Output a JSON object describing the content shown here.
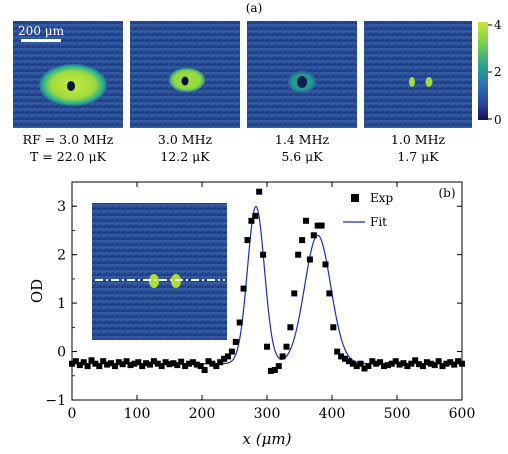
{
  "panel_a": {
    "label": "(a)",
    "scale_bar": "200 μm",
    "captions": [
      {
        "rf": "RF = 3.0 MHz",
        "temp": "T = 22.0 μK"
      },
      {
        "rf": "3.0 MHz",
        "temp": "12.2 μK"
      },
      {
        "rf": "1.4 MHz",
        "temp": "5.6 μK"
      },
      {
        "rf": "1.0 MHz",
        "temp": "1.7 μK"
      }
    ],
    "colorbar_ticks": [
      "4",
      "2",
      "0"
    ],
    "colors": {
      "background": "#2a4c9a",
      "mid": "#27a38a",
      "high": "#b9e43b",
      "hole": "#08133a"
    }
  },
  "panel_b": {
    "label": "(b)",
    "legend": {
      "exp": "Exp",
      "fit": "Fit"
    },
    "colors": {
      "fit": "#1a2fb8",
      "data": "#000000"
    }
  },
  "chart_data": {
    "type": "scatter",
    "title": "",
    "xlabel": "x (μm)",
    "ylabel": "OD",
    "xlim": [
      0,
      600
    ],
    "ylim": [
      -1,
      3.5
    ],
    "xticks": [
      "0",
      "100",
      "200",
      "300",
      "400",
      "500",
      "600"
    ],
    "yticks": [
      "−1",
      "0",
      "1",
      "2",
      "3"
    ],
    "legend_position": "top-right",
    "series": [
      {
        "name": "Exp",
        "type": "scatter",
        "x": [
          0,
          6,
          12,
          18,
          24,
          30,
          36,
          42,
          48,
          54,
          60,
          66,
          72,
          78,
          84,
          90,
          96,
          102,
          108,
          114,
          120,
          126,
          132,
          138,
          144,
          150,
          156,
          162,
          168,
          174,
          180,
          186,
          192,
          198,
          204,
          210,
          216,
          222,
          228,
          234,
          240,
          246,
          252,
          258,
          264,
          270,
          276,
          282,
          288,
          294,
          300,
          306,
          312,
          318,
          324,
          330,
          336,
          342,
          348,
          354,
          360,
          366,
          372,
          378,
          384,
          390,
          396,
          402,
          408,
          414,
          420,
          426,
          432,
          438,
          444,
          450,
          456,
          462,
          468,
          474,
          480,
          486,
          492,
          498,
          504,
          510,
          516,
          522,
          528,
          534,
          540,
          546,
          552,
          558,
          564,
          570,
          576,
          582,
          588,
          594,
          600
        ],
        "y": [
          -0.25,
          -0.2,
          -0.28,
          -0.22,
          -0.3,
          -0.18,
          -0.25,
          -0.3,
          -0.2,
          -0.27,
          -0.24,
          -0.3,
          -0.22,
          -0.26,
          -0.2,
          -0.28,
          -0.25,
          -0.22,
          -0.3,
          -0.24,
          -0.27,
          -0.2,
          -0.25,
          -0.3,
          -0.22,
          -0.26,
          -0.24,
          -0.28,
          -0.21,
          -0.3,
          -0.25,
          -0.22,
          -0.27,
          -0.3,
          -0.38,
          -0.2,
          -0.25,
          -0.3,
          -0.22,
          -0.15,
          -0.1,
          0.0,
          0.2,
          0.6,
          1.3,
          2.3,
          2.7,
          2.8,
          3.3,
          2.0,
          0.1,
          -0.4,
          -0.38,
          -0.3,
          -0.1,
          0.1,
          0.5,
          1.2,
          2.0,
          2.3,
          2.7,
          1.9,
          2.4,
          2.6,
          2.6,
          1.8,
          1.2,
          0.5,
          0.0,
          -0.1,
          -0.15,
          -0.2,
          -0.25,
          -0.3,
          -0.25,
          -0.35,
          -0.3,
          -0.2,
          -0.25,
          -0.22,
          -0.3,
          -0.28,
          -0.25,
          -0.2,
          -0.27,
          -0.24,
          -0.3,
          -0.25,
          -0.18,
          -0.26,
          -0.3,
          -0.22,
          -0.25,
          -0.28,
          -0.2,
          -0.3,
          -0.25,
          -0.22,
          -0.27,
          -0.2,
          -0.25
        ]
      },
      {
        "name": "Fit",
        "type": "line",
        "baseline": -0.25,
        "peaks": [
          {
            "center": 283,
            "height": 3.25,
            "sigma": 13
          },
          {
            "center": 378,
            "height": 2.65,
            "sigma": 20
          }
        ]
      }
    ],
    "inset": {
      "description_visible": false,
      "line_style": "dash-dot",
      "colors": {
        "background": "#2a4c9a",
        "spot": "#b9e43b",
        "line": "#ffffff"
      }
    }
  }
}
